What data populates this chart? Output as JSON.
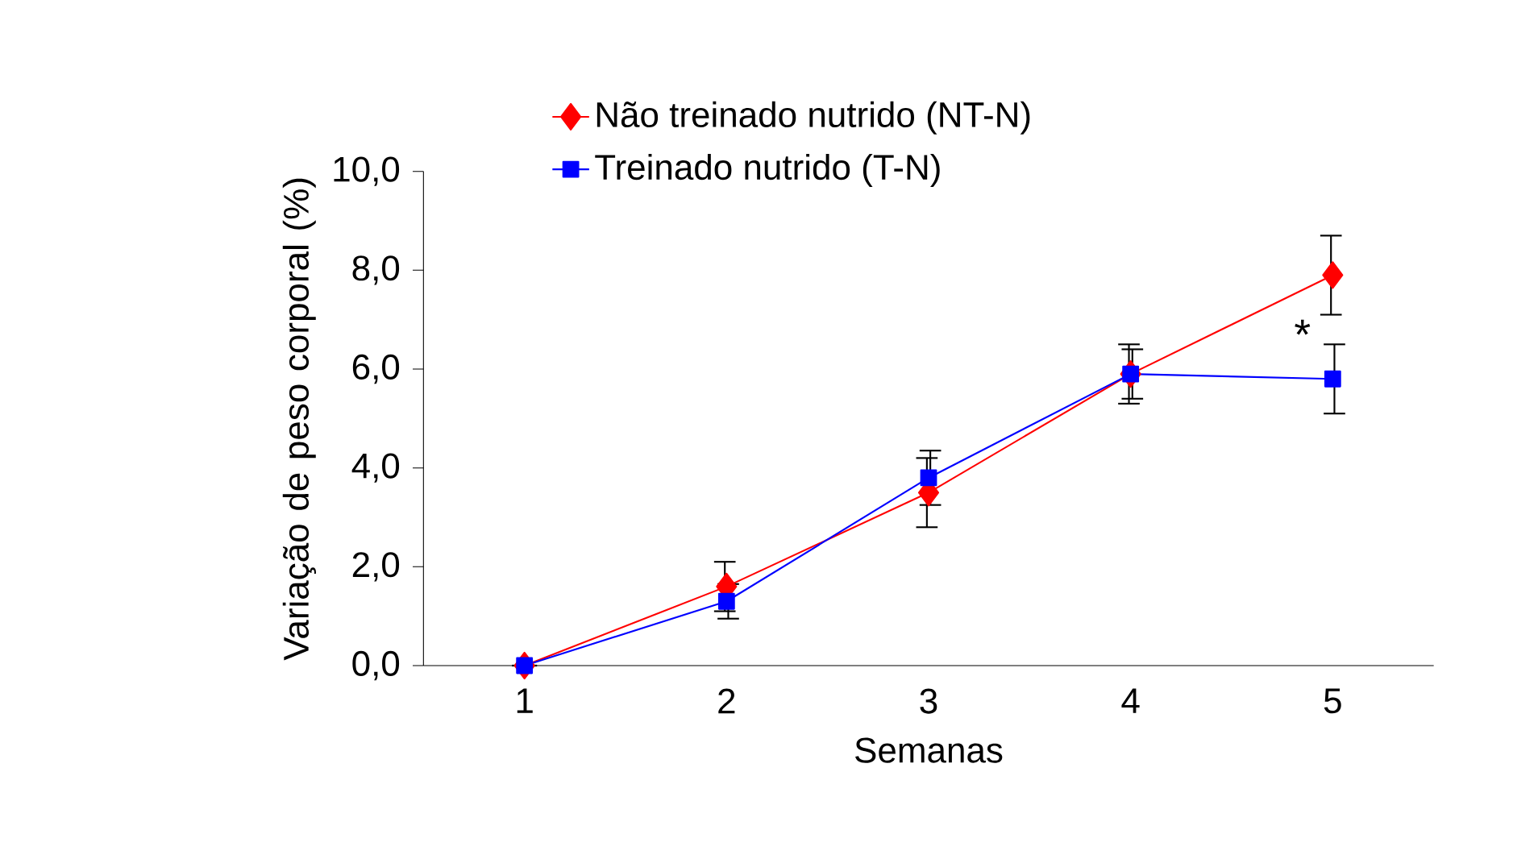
{
  "chart_data": {
    "type": "line",
    "xlabel": "Semanas",
    "ylabel": "Variação de peso corporal (%)",
    "categories": [
      "1",
      "2",
      "3",
      "4",
      "5"
    ],
    "series": [
      {
        "name": "Não treinado nutrido (NT-N)",
        "color": "#ff0000",
        "marker": "diamond",
        "values": [
          0,
          1.6,
          3.5,
          5.9,
          7.9
        ],
        "errors": [
          null,
          0.5,
          0.7,
          0.6,
          0.8
        ]
      },
      {
        "name": "Treinado nutrido (T-N)",
        "color": "#0000ff",
        "marker": "square",
        "values": [
          0,
          1.3,
          3.8,
          5.9,
          5.8
        ],
        "errors": [
          null,
          0.35,
          0.55,
          0.5,
          0.7
        ]
      }
    ],
    "ylim": [
      0,
      10
    ],
    "yticks": [
      {
        "value": 0,
        "label": "0,0"
      },
      {
        "value": 2,
        "label": "2,0"
      },
      {
        "value": 4,
        "label": "4,0"
      },
      {
        "value": 6,
        "label": "6,0"
      },
      {
        "value": 8,
        "label": "8,0"
      },
      {
        "value": 10,
        "label": "10,0"
      }
    ],
    "annotations": [
      "*"
    ],
    "grid": false,
    "legend": "top"
  }
}
